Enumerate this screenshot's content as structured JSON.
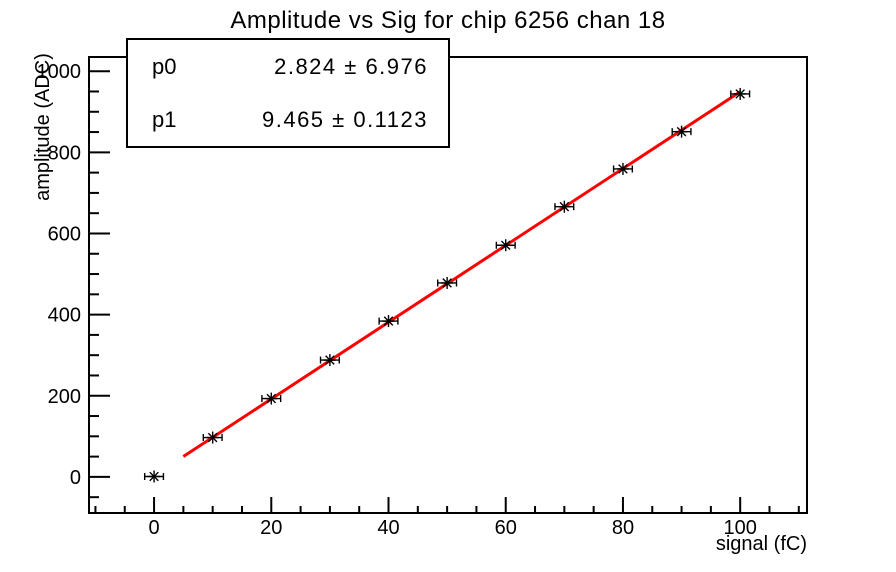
{
  "title": "Amplitude vs Sig for chip 6256 chan 18",
  "stats_box": {
    "rows": [
      {
        "name": "p0",
        "value": "2.824 ± 6.976"
      },
      {
        "name": "p1",
        "value": "9.465 ± 0.1123"
      }
    ]
  },
  "chart_data": {
    "type": "scatter",
    "title": "Amplitude vs Sig for chip 6256 chan 18",
    "xlabel": "signal (fC)",
    "ylabel": "amplitude (ADC)",
    "xlim": [
      -11.1,
      111.4
    ],
    "ylim": [
      -89,
      1035
    ],
    "x_major_ticks": [
      0,
      20,
      40,
      60,
      80,
      100
    ],
    "x_minor_step": 5,
    "y_major_ticks": [
      0,
      200,
      400,
      600,
      800,
      1000
    ],
    "y_minor_step": 50,
    "grid": false,
    "legend": false,
    "points": {
      "x": [
        0,
        10,
        20,
        30,
        40,
        50,
        60,
        70,
        80,
        90,
        100
      ],
      "y": [
        1,
        97,
        193,
        288,
        384,
        478,
        571,
        666,
        759,
        851,
        944
      ],
      "xerr": 1.6,
      "marker": "asterisk",
      "color": "#000000"
    },
    "fit": {
      "p0": 2.824,
      "p0_err": 6.976,
      "p1": 9.465,
      "p1_err": 0.1123,
      "x_range": [
        5,
        100
      ],
      "color": "#ff0000"
    },
    "colors": {
      "frame": "#000000",
      "background": "#ffffff",
      "text": "#000000"
    }
  }
}
